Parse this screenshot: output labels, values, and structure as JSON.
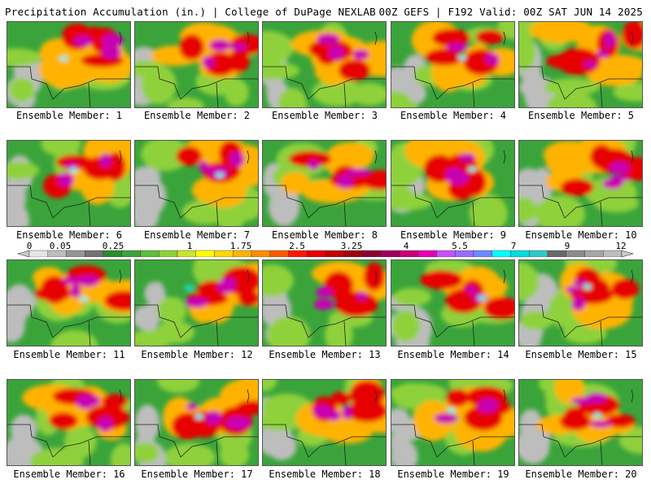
{
  "header": {
    "left": "Precipitation Accumulation (in.) | College of DuPage NEXLAB",
    "right": "00Z GEFS | F192 Valid: 00Z SAT JUN 14 2025"
  },
  "panels": [
    {
      "label": "Ensemble Member: 1"
    },
    {
      "label": "Ensemble Member: 2"
    },
    {
      "label": "Ensemble Member: 3"
    },
    {
      "label": "Ensemble Member: 4"
    },
    {
      "label": "Ensemble Member: 5"
    },
    {
      "label": "Ensemble Member: 6"
    },
    {
      "label": "Ensemble Member: 7"
    },
    {
      "label": "Ensemble Member: 8"
    },
    {
      "label": "Ensemble Member: 9"
    },
    {
      "label": "Ensemble Member: 10"
    },
    {
      "label": "Ensemble Member: 11"
    },
    {
      "label": "Ensemble Member: 12"
    },
    {
      "label": "Ensemble Member: 13"
    },
    {
      "label": "Ensemble Member: 14"
    },
    {
      "label": "Ensemble Member: 15"
    },
    {
      "label": "Ensemble Member: 16"
    },
    {
      "label": "Ensemble Member: 17"
    },
    {
      "label": "Ensemble Member: 18"
    },
    {
      "label": "Ensemble Member: 19"
    },
    {
      "label": "Ensemble Member: 20"
    }
  ],
  "colorbar": {
    "tick_labels": [
      "0",
      "0.05",
      "0.25",
      "1",
      "1.75",
      "2.5",
      "3.25",
      "4",
      "5.5",
      "7",
      "9",
      "12"
    ],
    "colors": [
      "#e6e6e6",
      "#bdbdbd",
      "#969696",
      "#737373",
      "#2e8b2e",
      "#3aa43a",
      "#5cbf3a",
      "#8fd13a",
      "#c8e62e",
      "#ffff00",
      "#ffd700",
      "#ffb300",
      "#ff8c00",
      "#ff5a00",
      "#ff1a00",
      "#e60000",
      "#c00000",
      "#a00010",
      "#8b0033",
      "#a0005a",
      "#c80078",
      "#e600b4",
      "#c850ff",
      "#9b6bff",
      "#6b8bff",
      "#00ffff",
      "#00dcdc",
      "#30c8c8",
      "#6a6a6a",
      "#8c8c8c",
      "#a6a6a6",
      "#bdbdbd"
    ]
  }
}
